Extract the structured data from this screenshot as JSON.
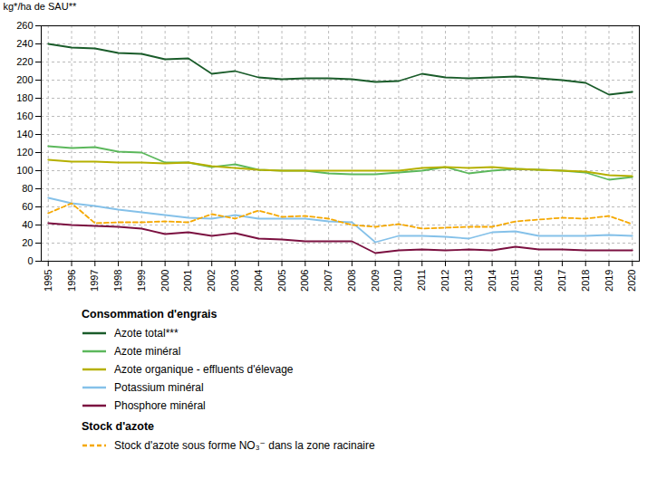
{
  "chart_data": {
    "type": "line",
    "x": [
      1995,
      1996,
      1997,
      1998,
      1999,
      2000,
      2001,
      2002,
      2003,
      2004,
      2005,
      2006,
      2007,
      2008,
      2009,
      2010,
      2011,
      2012,
      2013,
      2014,
      2015,
      2016,
      2017,
      2018,
      2019,
      2020
    ],
    "xlim": [
      1994.7,
      2020.3
    ],
    "xticks": [
      1995,
      1996,
      1997,
      1998,
      1999,
      2000,
      2001,
      2002,
      2003,
      2004,
      2005,
      2006,
      2007,
      2008,
      2009,
      2010,
      2011,
      2012,
      2013,
      2014,
      2015,
      2016,
      2017,
      2018,
      2019,
      2020
    ],
    "ylim": [
      0,
      260
    ],
    "yticks": [
      0,
      20,
      40,
      60,
      80,
      100,
      120,
      140,
      160,
      180,
      200,
      220,
      240,
      260
    ],
    "ylabel": "kg*/ha de SAU**",
    "grid": true,
    "series": [
      {
        "name": "Azote total***",
        "group": "Consommation d'engrais",
        "color": "#1a5c2a",
        "line_style": "solid",
        "values": [
          240,
          236,
          235,
          230,
          229,
          223,
          224,
          207,
          210,
          203,
          201,
          202,
          202,
          201,
          198,
          199,
          207,
          203,
          202,
          203,
          204,
          202,
          200,
          197,
          184,
          187
        ]
      },
      {
        "name": "Azote minéral",
        "group": "Consommation d'engrais",
        "color": "#5cb85c",
        "line_style": "solid",
        "values": [
          127,
          125,
          126,
          121,
          120,
          109,
          109,
          104,
          107,
          101,
          100,
          100,
          97,
          96,
          96,
          98,
          100,
          104,
          97,
          100,
          102,
          101,
          100,
          98,
          90,
          93
        ]
      },
      {
        "name": "Azote organique - effluents d'élevage",
        "group": "Consommation d'engrais",
        "color": "#b5b000",
        "line_style": "solid",
        "values": [
          112,
          110,
          110,
          109,
          109,
          108,
          109,
          105,
          103,
          101,
          100,
          100,
          100,
          100,
          100,
          100,
          103,
          104,
          103,
          104,
          102,
          101,
          100,
          99,
          95,
          94
        ]
      },
      {
        "name": "Potassium minéral",
        "group": "Consommation d'engrais",
        "color": "#85c1e9",
        "line_style": "solid",
        "values": [
          70,
          64,
          61,
          57,
          54,
          51,
          48,
          47,
          51,
          47,
          47,
          47,
          44,
          43,
          21,
          28,
          28,
          27,
          25,
          32,
          33,
          28,
          28,
          28,
          29,
          28
        ]
      },
      {
        "name": "Phosphore minéral",
        "group": "Consommation d'engrais",
        "color": "#7b1040",
        "line_style": "solid",
        "values": [
          42,
          40,
          39,
          38,
          36,
          30,
          32,
          28,
          31,
          25,
          24,
          22,
          22,
          22,
          9,
          12,
          13,
          12,
          13,
          12,
          16,
          13,
          13,
          12,
          12,
          12
        ]
      },
      {
        "name": "Stock d'azote sous forme NO₃⁻ dans la zone racinaire",
        "group": "Stock d'azote",
        "color": "#f5a800",
        "line_style": "dashed",
        "values": [
          53,
          64,
          42,
          43,
          43,
          44,
          43,
          52,
          47,
          56,
          49,
          50,
          47,
          40,
          38,
          41,
          36,
          37,
          38,
          38,
          44,
          46,
          48,
          47,
          50,
          41
        ]
      }
    ]
  }
}
